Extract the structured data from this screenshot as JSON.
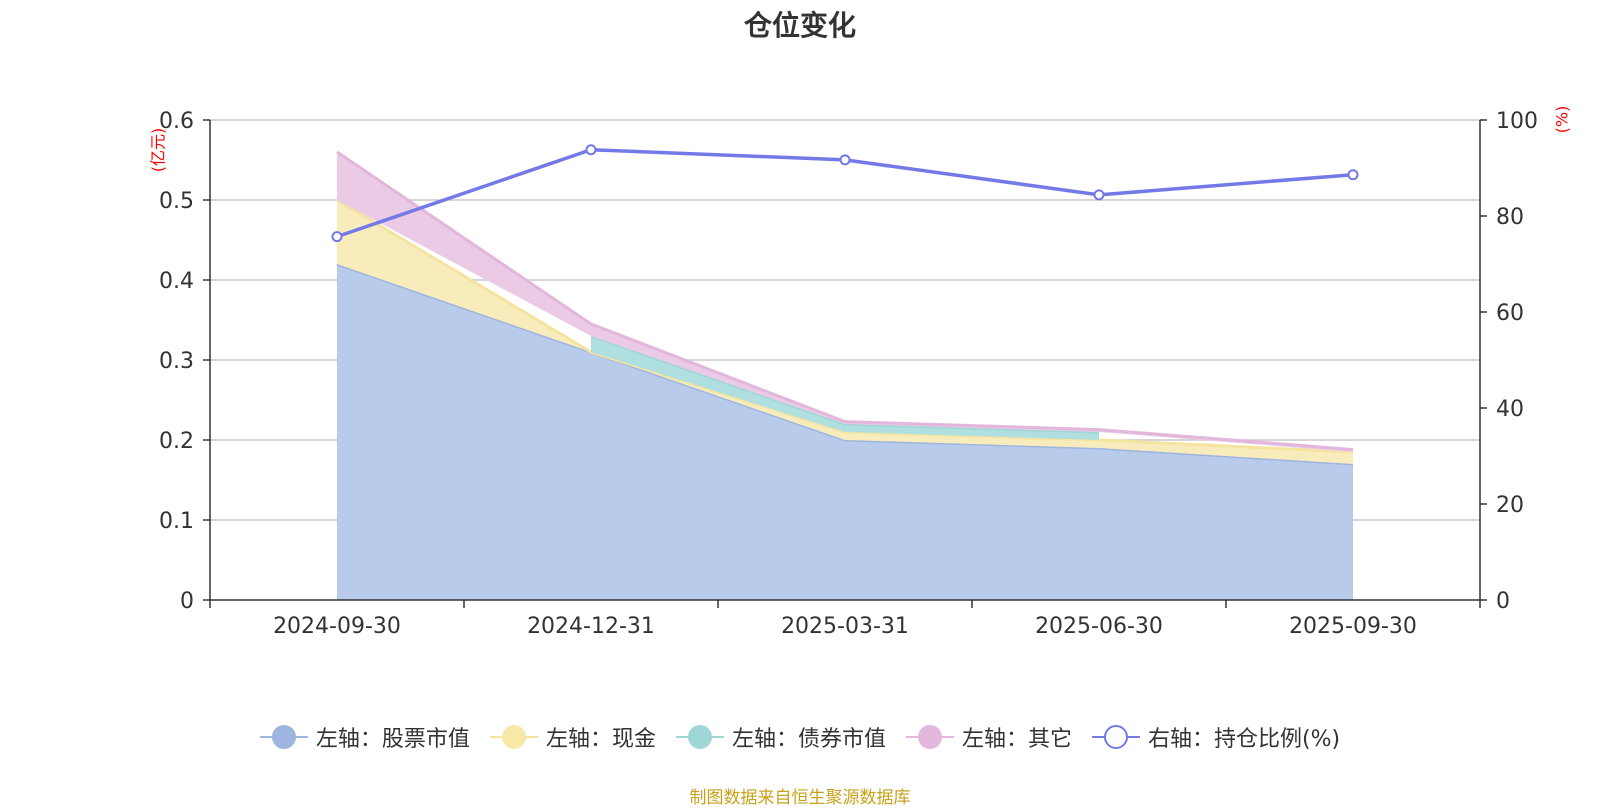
{
  "title": "仓位变化",
  "left_unit": "(亿元)",
  "right_unit": "(%)",
  "source": "制图数据来自恒生聚源数据库",
  "chart_data": {
    "type": "area",
    "title": "仓位变化",
    "categories": [
      "2024-09-30",
      "2024-12-31",
      "2025-03-31",
      "2025-06-30",
      "2025-09-30"
    ],
    "left_axis": {
      "unit": "(亿元)",
      "range": [
        0,
        0.6
      ],
      "ticks": [
        "0",
        "0.1",
        "0.2",
        "0.3",
        "0.4",
        "0.5",
        "0.6"
      ]
    },
    "right_axis": {
      "unit": "(%)",
      "range": [
        0,
        100
      ],
      "ticks": [
        "0",
        "20",
        "40",
        "60",
        "80",
        "100"
      ]
    },
    "grid": true,
    "legend_position": "bottom",
    "series": [
      {
        "name": "左轴：股票市值",
        "axis": "left",
        "stacked": true,
        "color": "#9db5e0",
        "fill": "#b8cbea",
        "values": [
          0.42,
          0.31,
          0.2,
          0.19,
          0.17
        ]
      },
      {
        "name": "左轴：现金",
        "axis": "left",
        "stacked": true,
        "color": "#f5e4a0",
        "fill": "#f8ecbd",
        "values": [
          0.08,
          0.0,
          0.01,
          0.01,
          0.015
        ]
      },
      {
        "name": "左轴：债券市值",
        "axis": "left",
        "stacked": true,
        "color": "#9fd6d6",
        "fill": "#b0dfe0",
        "values": [
          null,
          0.02,
          0.01,
          0.01,
          null
        ]
      },
      {
        "name": "左轴：其它",
        "axis": "left",
        "stacked": true,
        "color": "#e3b7dc",
        "fill": "#ebcae6",
        "values": [
          0.06,
          0.015,
          0.003,
          0.003,
          0.003
        ]
      },
      {
        "name": "右轴：持仓比例(%)",
        "axis": "right",
        "type": "line",
        "color": "#7479e8",
        "values": [
          75.7,
          93.8,
          91.7,
          84.4,
          88.6
        ]
      }
    ]
  }
}
